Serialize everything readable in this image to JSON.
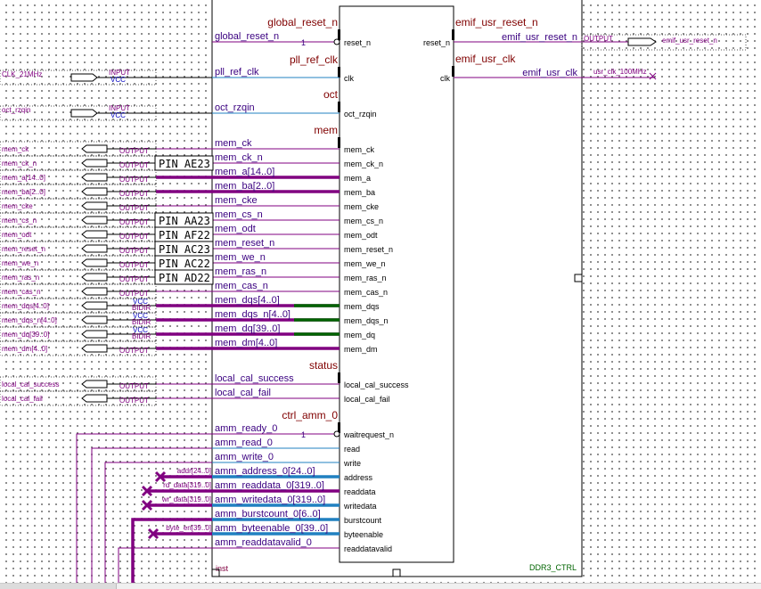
{
  "block": {
    "instance": "inst",
    "entity": "DDR3_CTRL"
  },
  "left_groups": [
    {
      "label": "global_reset_n",
      "row": 0
    },
    {
      "label": "pll_ref_clk",
      "row": 1
    },
    {
      "label": "oct",
      "row": 2
    },
    {
      "label": "mem",
      "row": 3
    },
    {
      "label": "status",
      "row": 18
    },
    {
      "label": "ctrl_amm_0",
      "row": 20
    }
  ],
  "left_ports": [
    {
      "signal": "global_reset_n",
      "port": "reset_n",
      "kind": "thin",
      "inverted": true,
      "constant": "1"
    },
    {
      "signal": "pll_ref_clk",
      "port": "clk",
      "kind": "blue"
    },
    {
      "signal": "oct_rzqin",
      "port": "oct_rzqin",
      "kind": "blue"
    },
    {
      "signal": "mem_ck",
      "port": "mem_ck",
      "kind": "thin"
    },
    {
      "signal": "mem_ck_n",
      "port": "mem_ck_n",
      "kind": "thin"
    },
    {
      "signal": "mem_a[14..0]",
      "port": "mem_a",
      "kind": "bus"
    },
    {
      "signal": "mem_ba[2..0]",
      "port": "mem_ba",
      "kind": "bus"
    },
    {
      "signal": "mem_cke",
      "port": "mem_cke",
      "kind": "thin"
    },
    {
      "signal": "mem_cs_n",
      "port": "mem_cs_n",
      "kind": "thin"
    },
    {
      "signal": "mem_odt",
      "port": "mem_odt",
      "kind": "thin"
    },
    {
      "signal": "mem_reset_n",
      "port": "mem_reset_n",
      "kind": "thin"
    },
    {
      "signal": "mem_we_n",
      "port": "mem_we_n",
      "kind": "thin"
    },
    {
      "signal": "mem_ras_n",
      "port": "mem_ras_n",
      "kind": "thin"
    },
    {
      "signal": "mem_cas_n",
      "port": "mem_cas_n",
      "kind": "thin"
    },
    {
      "signal": "mem_dqs[4..0]",
      "port": "mem_dqs",
      "kind": "bidir"
    },
    {
      "signal": "mem_dqs_n[4..0]",
      "port": "mem_dqs_n",
      "kind": "bidir"
    },
    {
      "signal": "mem_dq[39..0]",
      "port": "mem_dq",
      "kind": "bidir"
    },
    {
      "signal": "mem_dm[4..0]",
      "port": "mem_dm",
      "kind": "bus"
    },
    {
      "signal": "local_cal_success",
      "port": "local_cal_success",
      "kind": "thin"
    },
    {
      "signal": "local_cal_fail",
      "port": "local_cal_fail",
      "kind": "thin"
    },
    {
      "signal": "amm_ready_0",
      "port": "waitrequest_n",
      "kind": "thin",
      "inverted": true,
      "constant": "1"
    },
    {
      "signal": "amm_read_0",
      "port": "read",
      "kind": "blue"
    },
    {
      "signal": "amm_write_0",
      "port": "write",
      "kind": "blue"
    },
    {
      "signal": "amm_address_0[24..0]",
      "port": "address",
      "kind": "bluebus"
    },
    {
      "signal": "amm_readdata_0[319..0]",
      "port": "readdata",
      "kind": "bus"
    },
    {
      "signal": "amm_writedata_0[319..0]",
      "port": "writedata",
      "kind": "bluebus"
    },
    {
      "signal": "amm_burstcount_0[6..0]",
      "port": "burstcount",
      "kind": "bluebus"
    },
    {
      "signal": "amm_byteenable_0[39..0]",
      "port": "byteenable",
      "kind": "bluebus"
    },
    {
      "signal": "amm_readdatavalid_0",
      "port": "readdatavalid",
      "kind": "thin"
    }
  ],
  "right_groups": [
    {
      "label": "emif_usr_reset_n"
    },
    {
      "label": "emif_usr_clk"
    }
  ],
  "right_ports": [
    {
      "port": "reset_n",
      "signal": "emif_usr_reset_n",
      "io_type": "OUTPUT",
      "pin_name": "emif_usr_reset_n"
    },
    {
      "port": "clk",
      "signal": "emif_usr_clk",
      "net_label": "usr_clk_100MHz"
    }
  ],
  "input_pins": [
    {
      "name": "CLK_21MHz",
      "type": "INPUT",
      "default": "VCC"
    },
    {
      "name": "oct_rzqin",
      "type": "INPUT",
      "default": "VCC"
    }
  ],
  "output_pins": [
    {
      "name": "mem_ck",
      "type": "OUTPUT"
    },
    {
      "name": "mem_ck_n",
      "type": "OUTPUT"
    },
    {
      "name": "mem_a[14..0]",
      "type": "OUTPUT"
    },
    {
      "name": "mem_ba[2..0]",
      "type": "OUTPUT"
    },
    {
      "name": "mem_cke",
      "type": "OUTPUT"
    },
    {
      "name": "mem_cs_n",
      "type": "OUTPUT"
    },
    {
      "name": "mem_odt",
      "type": "OUTPUT"
    },
    {
      "name": "mem_reset_n",
      "type": "OUTPUT"
    },
    {
      "name": "mem_we_n",
      "type": "OUTPUT"
    },
    {
      "name": "mem_ras_n",
      "type": "OUTPUT"
    },
    {
      "name": "mem_cas_n",
      "type": "OUTPUT"
    },
    {
      "name": "mem_dqs[4..0]",
      "type": "BIDIR",
      "default": "VCC"
    },
    {
      "name": "mem_dqs_n[4..0]",
      "type": "BIDIR",
      "default": "VCC"
    },
    {
      "name": "mem_dq[39..0]",
      "type": "BIDIR",
      "default": "VCC"
    },
    {
      "name": "mem_dm[4..0]",
      "type": "OUTPUT"
    }
  ],
  "status_pins": [
    {
      "name": "local_cal_success",
      "type": "OUTPUT"
    },
    {
      "name": "local_cal_fail",
      "type": "OUTPUT"
    }
  ],
  "pin_assignments": [
    {
      "row": 1,
      "text": "PIN_AE23"
    },
    {
      "row": 5,
      "text": "PIN_AA23"
    },
    {
      "row": 6,
      "text": "PIN_AF22"
    },
    {
      "row": 7,
      "text": "PIN_AC23"
    },
    {
      "row": 8,
      "text": "PIN_AC22"
    },
    {
      "row": 9,
      "text": "PIN_AD22"
    }
  ],
  "net_labels": [
    {
      "row": 23,
      "text": "addr[24..0]"
    },
    {
      "row": 24,
      "text": "rd_data[319..0]"
    },
    {
      "row": 25,
      "text": "wr_data[319..0]"
    },
    {
      "row": 27,
      "text": "byte_en[39..0]"
    }
  ],
  "colors": {
    "wire": "#800080",
    "blue": "#2080c0",
    "green": "#006400",
    "text": "#800040"
  }
}
